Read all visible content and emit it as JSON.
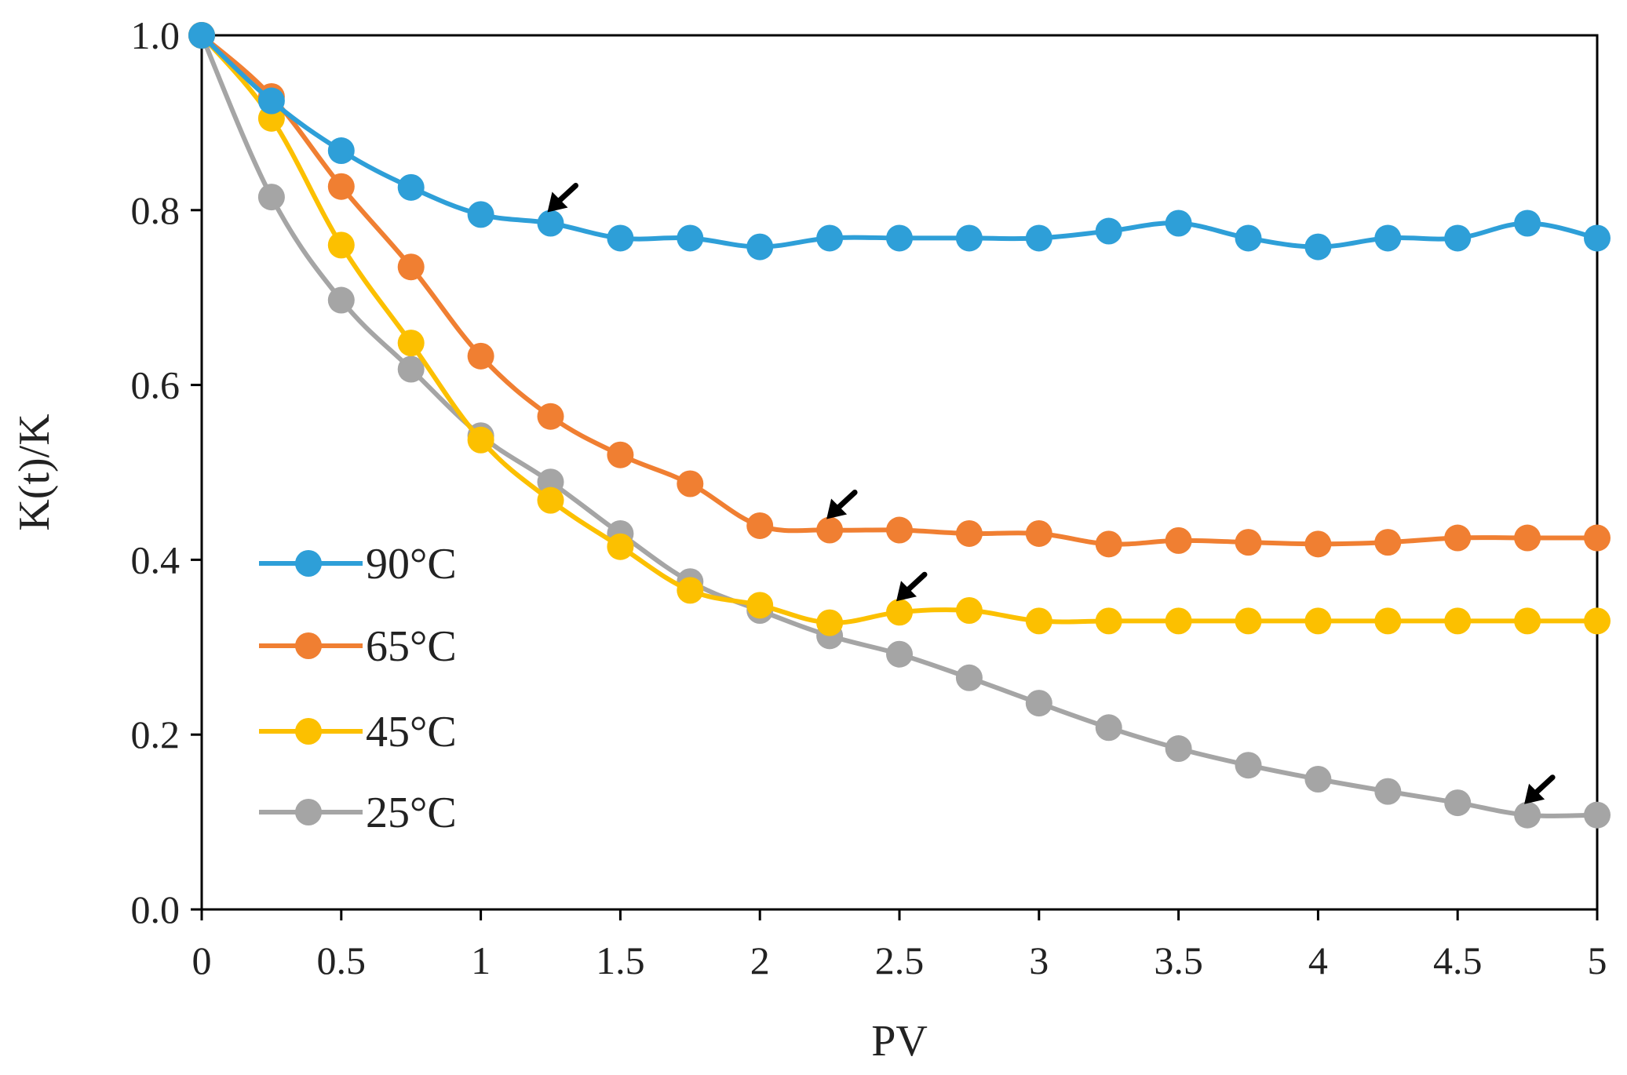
{
  "chart_data": {
    "type": "line",
    "title": "",
    "xlabel": "PV",
    "ylabel": "K(t)/K",
    "xlim": [
      0,
      5
    ],
    "ylim": [
      0,
      1
    ],
    "x_ticks": [
      "0",
      "0.5",
      "1",
      "1.5",
      "2",
      "2.5",
      "3",
      "3.5",
      "4",
      "4.5",
      "5"
    ],
    "x_tick_values": [
      0,
      0.5,
      1,
      1.5,
      2,
      2.5,
      3,
      3.5,
      4,
      4.5,
      5
    ],
    "y_ticks": [
      "0.0",
      "0.2",
      "0.4",
      "0.6",
      "0.8",
      "1.0"
    ],
    "y_tick_values": [
      0,
      0.2,
      0.4,
      0.6,
      0.8,
      1.0
    ],
    "grid": false,
    "legend_position": "lower-left",
    "x": [
      0,
      0.25,
      0.5,
      0.75,
      1,
      1.25,
      1.5,
      1.75,
      2,
      2.25,
      2.5,
      2.75,
      3,
      3.25,
      3.5,
      3.75,
      4,
      4.25,
      4.5,
      4.75,
      5
    ],
    "series": [
      {
        "name": "90°C",
        "color": "#2e9fd8",
        "values": [
          1.0,
          0.925,
          0.868,
          0.826,
          0.795,
          0.785,
          0.768,
          0.768,
          0.758,
          0.768,
          0.768,
          0.768,
          0.768,
          0.776,
          0.785,
          0.768,
          0.758,
          0.768,
          0.768,
          0.785,
          0.768
        ]
      },
      {
        "name": "65°C",
        "color": "#f07f32",
        "values": [
          1.0,
          0.93,
          0.827,
          0.735,
          0.633,
          0.564,
          0.52,
          0.487,
          0.439,
          0.434,
          0.434,
          0.43,
          0.43,
          0.418,
          0.422,
          0.42,
          0.418,
          0.42,
          0.425,
          0.425,
          0.425
        ]
      },
      {
        "name": "45°C",
        "color": "#fcc000",
        "values": [
          1.0,
          0.905,
          0.76,
          0.648,
          0.537,
          0.468,
          0.415,
          0.365,
          0.348,
          0.328,
          0.34,
          0.342,
          0.33,
          0.33,
          0.33,
          0.33,
          0.33,
          0.33,
          0.33,
          0.33,
          0.33
        ]
      },
      {
        "name": "25°C",
        "color": "#a5a5a5",
        "values": [
          1.0,
          0.815,
          0.697,
          0.618,
          0.542,
          0.489,
          0.43,
          0.375,
          0.342,
          0.313,
          0.292,
          0.265,
          0.236,
          0.208,
          0.184,
          0.165,
          0.149,
          0.135,
          0.122,
          0.108,
          0.108
        ]
      }
    ],
    "annotations": [
      {
        "type": "arrow",
        "series": "90°C",
        "x": 1.25,
        "y": 0.785
      },
      {
        "type": "arrow",
        "series": "65°C",
        "x": 2.25,
        "y": 0.434
      },
      {
        "type": "arrow",
        "series": "45°C",
        "x": 2.5,
        "y": 0.34
      },
      {
        "type": "arrow",
        "series": "25°C",
        "x": 4.75,
        "y": 0.108
      }
    ]
  }
}
